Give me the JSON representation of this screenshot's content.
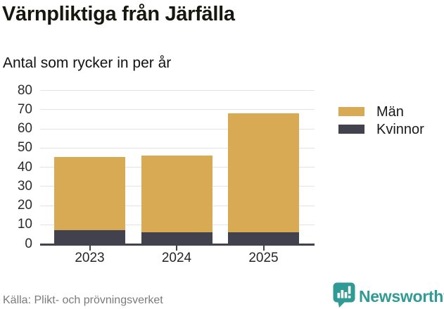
{
  "header": {
    "title": "Värnpliktiga från Järfälla",
    "subtitle": "Antal som rycker in per år"
  },
  "chart_data": {
    "type": "bar",
    "stacked": true,
    "title": "Värnpliktiga från Järfälla",
    "subtitle": "Antal som rycker in per år",
    "categories": [
      "2023",
      "2024",
      "2025"
    ],
    "series": [
      {
        "name": "Män",
        "color": "#d9aa54",
        "values": [
          38,
          40,
          62
        ]
      },
      {
        "name": "Kvinnor",
        "color": "#42424e",
        "values": [
          7,
          6,
          6
        ]
      }
    ],
    "stack_order_bottom_to_top": [
      "Kvinnor",
      "Män"
    ],
    "totals": [
      45,
      46,
      68
    ],
    "xlabel": "",
    "ylabel": "",
    "ylim": [
      0,
      80
    ],
    "ytick_step": 10,
    "grid": true,
    "legend_position": "right"
  },
  "footer": {
    "source": "Källa: Plikt- och prövningsverket",
    "brand": "Newsworthy"
  },
  "colors": {
    "men": "#d9aa54",
    "women": "#42424e",
    "brand_teal": "#2f9b94",
    "gridline": "#e3e3e3",
    "axis": "#42424e"
  }
}
